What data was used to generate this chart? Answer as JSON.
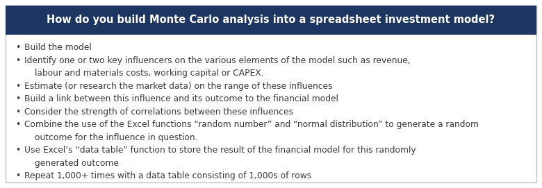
{
  "title": "How do you build Monte Carlo analysis into a spreadsheet investment model?",
  "title_bg_color": "#1c3661",
  "title_text_color": "#ffffff",
  "body_bg_color": "#ffffff",
  "outer_border_color": "#c0c0c0",
  "body_border_color": "#c0c0c0",
  "text_color": "#3a3a3a",
  "bullet_lines": [
    [
      "Build the model"
    ],
    [
      "Identify one or two key influencers on the various elements of the model such as revenue,",
      "labour and materials costs, working capital or CAPEX."
    ],
    [
      "Estimate (or research the market data) on the range of these influences"
    ],
    [
      "Build a link between this influence and its outcome to the financial model"
    ],
    [
      "Consider the strength of correlations between these influences"
    ],
    [
      "Combine the use of the Excel functions “random number” and “normal distribution” to generate a random",
      "outcome for the influence in question."
    ],
    [
      "Use Excel’s “data table” function to store the result of the financial model for this randomly",
      "generated outcome"
    ],
    [
      "Repeat 1,000+ times with a data table consisting of 1,000s of rows"
    ]
  ],
  "bullet_char": "•",
  "font_size_title": 10.5,
  "font_size_body": 8.8,
  "fig_width": 7.8,
  "fig_height": 2.71,
  "dpi": 100
}
